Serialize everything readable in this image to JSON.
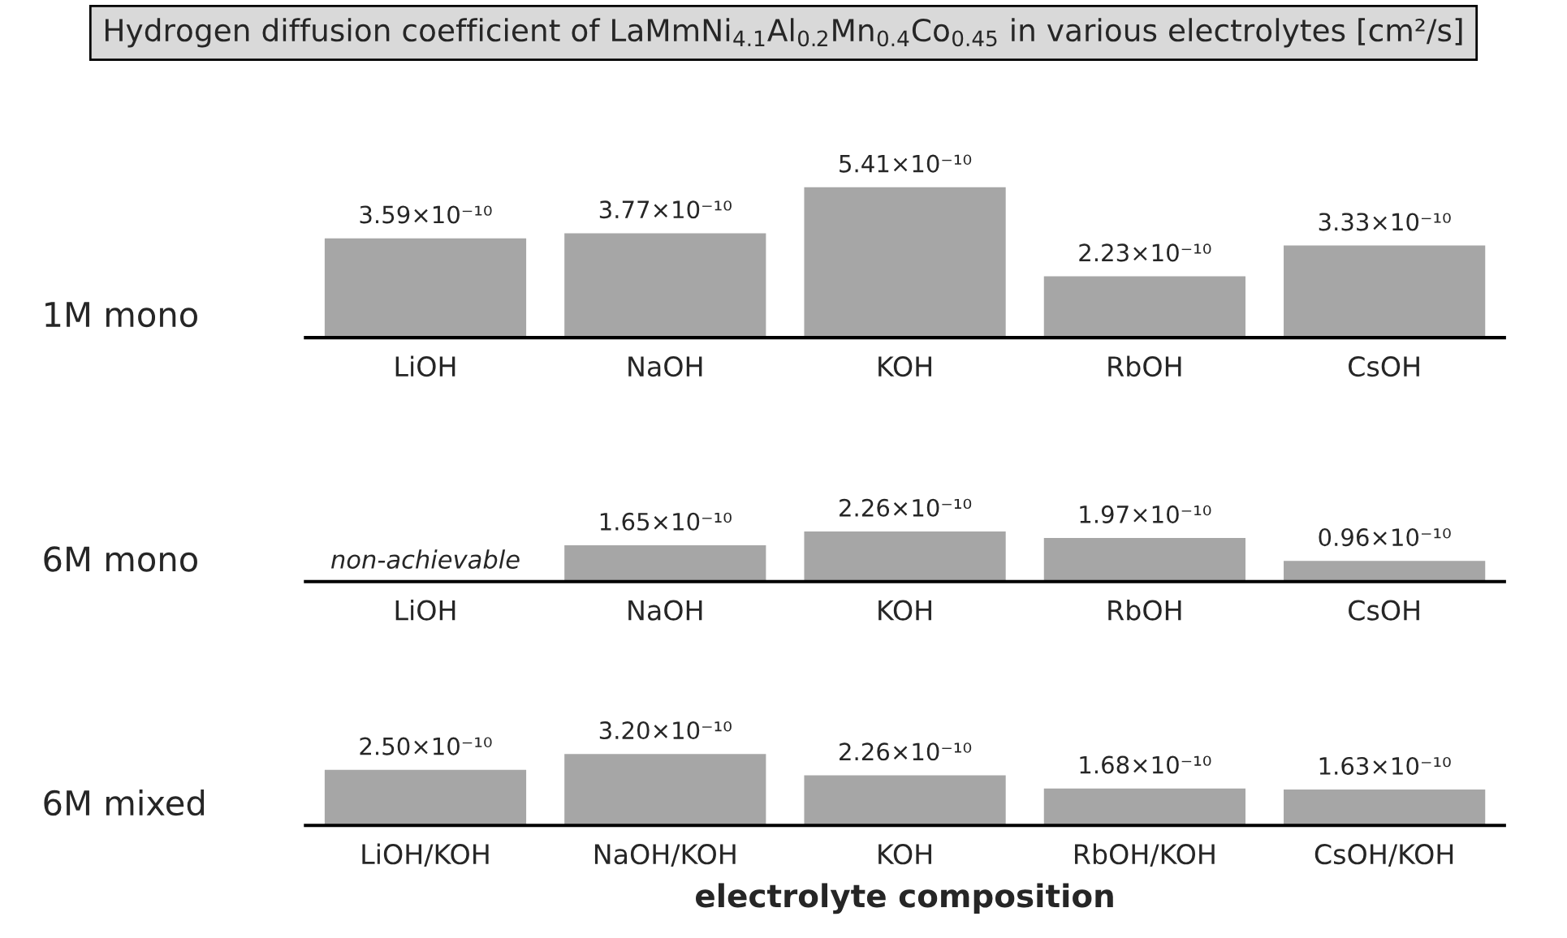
{
  "chart_data": [
    {
      "type": "bar",
      "title": "Hydrogen diffusion coefficient of LaMmNi$_{4.1}$Al$_{0.2}$Mn$_{0.4}$Co$_{0.45}$ in various electrolytes [cm²/s]",
      "ylabel": "1M mono",
      "categories": [
        "LiOH",
        "NaOH",
        "KOH",
        "RbOH",
        "CsOH"
      ],
      "values": [
        3.59e-10,
        3.77e-10,
        5.41e-10,
        2.23e-10,
        3.33e-10
      ],
      "value_labels": [
        "3.59×10⁻¹⁰",
        "3.77×10⁻¹⁰",
        "5.41×10⁻¹⁰",
        "2.23×10⁻¹⁰",
        "3.33×10⁻¹⁰"
      ],
      "color": "#a6a6a6",
      "grid": false,
      "legend": false
    },
    {
      "type": "bar",
      "ylabel": "6M mono",
      "categories": [
        "LiOH",
        "NaOH",
        "KOH",
        "RbOH",
        "CsOH"
      ],
      "values": [
        null,
        1.65e-10,
        2.26e-10,
        1.97e-10,
        9.6e-11
      ],
      "value_labels": [
        null,
        "1.65×10⁻¹⁰",
        "2.26×10⁻¹⁰",
        "1.97×10⁻¹⁰",
        "0.96×10⁻¹⁰"
      ],
      "color": "#a6a6a6",
      "annotations": [
        "non-achievable"
      ],
      "grid": false,
      "legend": false
    },
    {
      "type": "bar",
      "ylabel": "6M mixed",
      "xlabel": "electrolyte composition",
      "categories": [
        "LiOH/KOH",
        "NaOH/KOH",
        "KOH",
        "RbOH/KOH",
        "CsOH/KOH"
      ],
      "values": [
        2.5e-10,
        3.2e-10,
        2.26e-10,
        1.68e-10,
        1.63e-10
      ],
      "value_labels": [
        "2.50×10⁻¹⁰",
        "3.20×10⁻¹⁰",
        "2.26×10⁻¹⁰",
        "1.68×10⁻¹⁰",
        "1.63×10⁻¹⁰"
      ],
      "color": "#a6a6a6",
      "grid": false,
      "legend": false
    }
  ]
}
